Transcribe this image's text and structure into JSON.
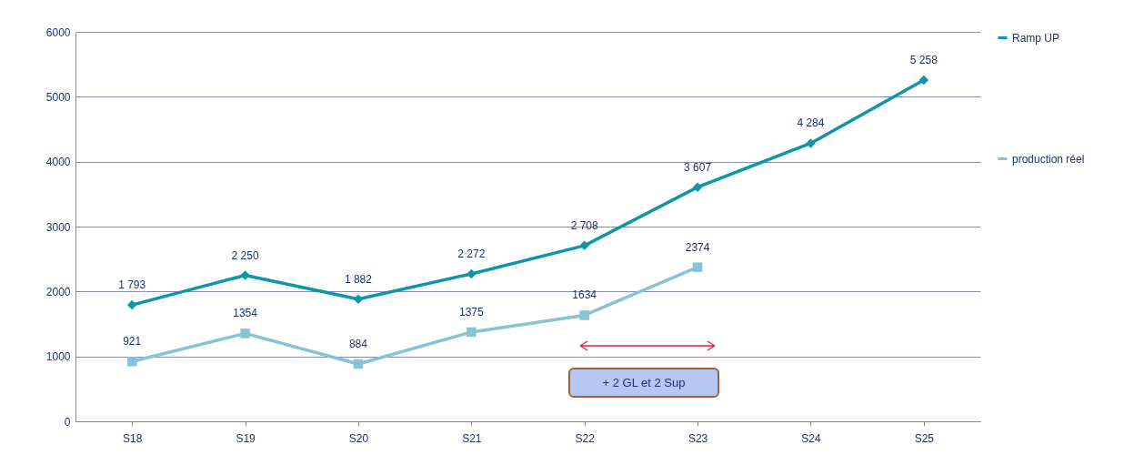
{
  "chart_data": {
    "type": "line",
    "categories": [
      "S18",
      "S19",
      "S20",
      "S21",
      "S22",
      "S23",
      "S24",
      "S25"
    ],
    "series": [
      {
        "name": "Ramp UP",
        "color": "#0e96a8",
        "marker": "diamond",
        "values": [
          1793,
          2250,
          1882,
          2272,
          2708,
          3607,
          4284,
          5258
        ],
        "value_labels": [
          "1 793",
          "2 250",
          "1 882",
          "2 272",
          "2 708",
          "3 607",
          "4 284",
          "5 258"
        ]
      },
      {
        "name": "production réel",
        "color": "#86c3d3",
        "marker": "square",
        "values": [
          921,
          1354,
          884,
          1375,
          1634,
          2374,
          null,
          null
        ],
        "value_labels": [
          "921",
          "1354",
          "884",
          "1375",
          "1634",
          "2374",
          null,
          null
        ]
      }
    ],
    "ylim": [
      0,
      6000
    ],
    "yticks": [
      0,
      1000,
      2000,
      3000,
      4000,
      5000,
      6000
    ],
    "grid": "y",
    "legend": "right",
    "annotations": [
      "+ 2 GL et 2 Sup"
    ]
  }
}
